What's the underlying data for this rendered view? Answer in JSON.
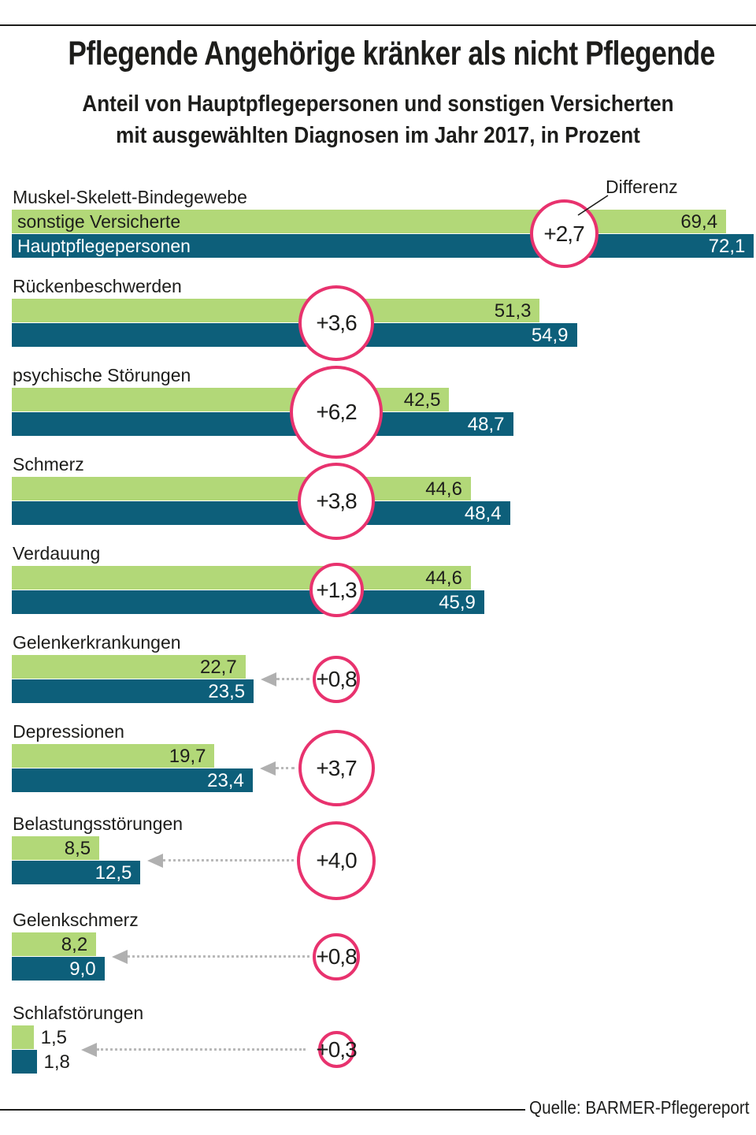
{
  "header": {
    "title": "Pflegende Angehörige kränker als nicht Pflegende",
    "subtitle_line1": "Anteil von Hauptpflegepersonen und sonstigen Versicherten",
    "subtitle_line2": "mit ausgewählten Diagnosen im Jahr 2017, in Prozent"
  },
  "annotation": {
    "differenz_label": "Differenz"
  },
  "legend": {
    "series1": "sonstige Versicherte",
    "series2": "Hauptpflegepersonen"
  },
  "footer": {
    "source": "Quelle: BARMER-Pflegereport"
  },
  "colors": {
    "green": "#b2d878",
    "teal": "#0d5f7a",
    "pink": "#e8326e",
    "text_dark": "#1d1d1b",
    "text_on_teal": "#ffffff",
    "arrow_gray": "#b0b0b0"
  },
  "chart_data": {
    "type": "bar",
    "orientation": "horizontal",
    "title": "Pflegende Angehörige kränker als nicht Pflegende",
    "subtitle": "Anteil von Hauptpflegepersonen und sonstigen Versicherten mit ausgewählten Diagnosen im Jahr 2017, in Prozent",
    "unit": "Prozent",
    "year": "2017",
    "xlim": [
      0,
      72.3
    ],
    "grid": false,
    "legend_position": "inside-first-bars",
    "categories": [
      "Muskel-Skelett-Bindegewebe",
      "Rückenbeschwerden",
      "psychische Störungen",
      "Schmerz",
      "Verdauung",
      "Gelenkerkrankungen",
      "Depressionen",
      "Belastungsstörungen",
      "Gelenkschmerz",
      "Schlafstörungen"
    ],
    "series": [
      {
        "name": "sonstige Versicherte",
        "values": [
          69.4,
          51.3,
          42.5,
          44.6,
          44.6,
          22.7,
          19.7,
          8.5,
          8.2,
          1.5
        ]
      },
      {
        "name": "Hauptpflegepersonen",
        "values": [
          72.1,
          54.9,
          48.7,
          48.4,
          45.9,
          23.5,
          23.4,
          12.5,
          9.0,
          1.8
        ]
      }
    ],
    "differences": [
      2.7,
      3.6,
      6.2,
      3.8,
      1.3,
      0.8,
      3.7,
      4.0,
      0.8,
      0.3
    ],
    "source": "Quelle: BARMER-Pflegereport"
  }
}
